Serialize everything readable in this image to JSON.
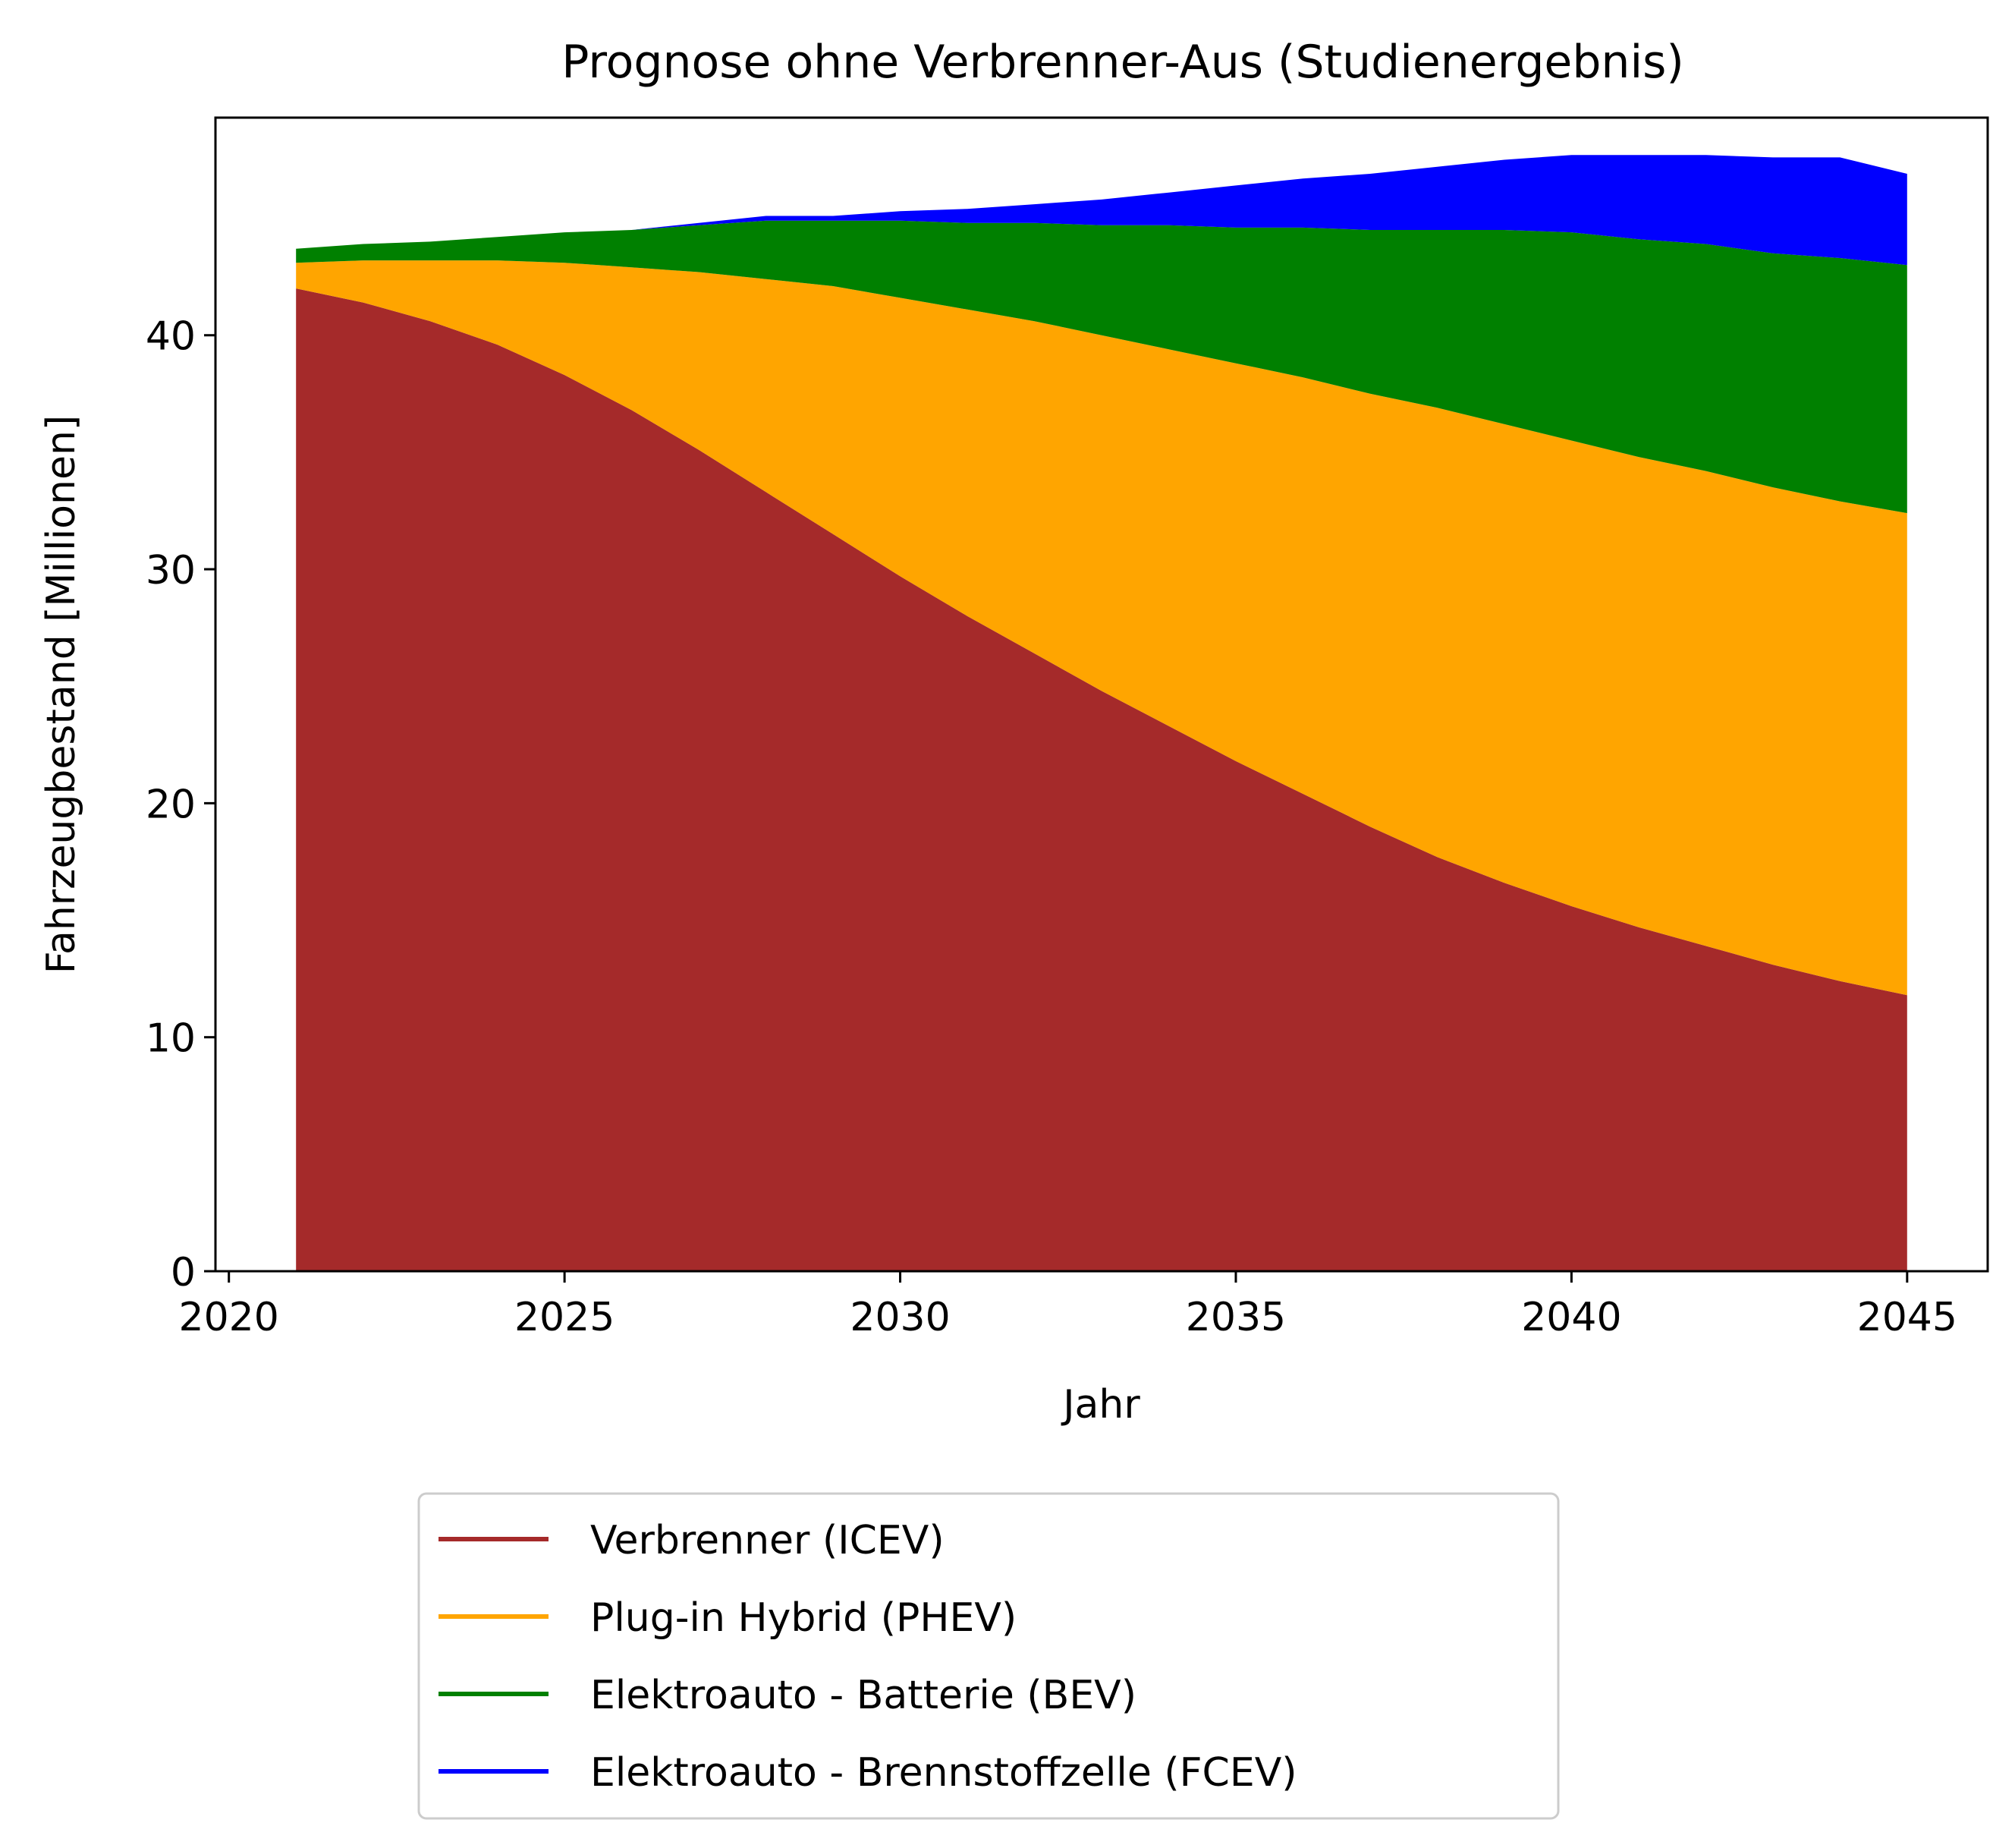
{
  "chart_data": {
    "type": "area",
    "stacked": true,
    "title": "Prognose ohne Verbrenner-Aus (Studienergebnis)",
    "xlabel": "Jahr",
    "ylabel": "Fahrzeugbestand [Millionen]",
    "xlim": [
      2019.8,
      2046.2
    ],
    "ylim": [
      0,
      49.3
    ],
    "xticks": [
      2020,
      2025,
      2030,
      2035,
      2040,
      2045
    ],
    "yticks": [
      0,
      10,
      20,
      30,
      40
    ],
    "grid": false,
    "legend_position": "below",
    "x": [
      2021,
      2022,
      2023,
      2024,
      2025,
      2026,
      2027,
      2028,
      2029,
      2030,
      2031,
      2032,
      2033,
      2034,
      2035,
      2036,
      2037,
      2038,
      2039,
      2040,
      2041,
      2042,
      2043,
      2044,
      2045
    ],
    "series": [
      {
        "name": "Verbrenner (ICEV)",
        "color": "#a52a2a",
        "values": [
          42.0,
          41.4,
          40.6,
          39.6,
          38.3,
          36.8,
          35.1,
          33.3,
          31.5,
          29.7,
          28.0,
          26.4,
          24.8,
          23.3,
          21.8,
          20.4,
          19.0,
          17.7,
          16.6,
          15.6,
          14.7,
          13.9,
          13.1,
          12.4,
          11.8
        ]
      },
      {
        "name": "Plug-in Hybrid (PHEV)",
        "color": "#ffa500",
        "values": [
          1.1,
          1.8,
          2.6,
          3.6,
          4.8,
          6.1,
          7.6,
          9.1,
          10.6,
          11.9,
          13.1,
          14.2,
          15.2,
          16.1,
          17.0,
          17.8,
          18.5,
          19.2,
          19.6,
          19.9,
          20.1,
          20.3,
          20.4,
          20.5,
          20.6
        ]
      },
      {
        "name": "Elektroauto - Batterie (BEV)",
        "color": "#008000",
        "values": [
          0.6,
          0.7,
          0.8,
          1.0,
          1.3,
          1.6,
          2.0,
          2.5,
          2.8,
          3.3,
          3.7,
          4.2,
          4.7,
          5.3,
          5.8,
          6.4,
          7.0,
          7.6,
          8.3,
          8.9,
          9.3,
          9.7,
          10.0,
          10.4,
          10.6
        ]
      },
      {
        "name": "Elektroauto - Brennstoffzelle (FCEV)",
        "color": "#0000ff",
        "values": [
          0.0,
          0.0,
          0.0,
          0.0,
          0.0,
          0.0,
          0.1,
          0.2,
          0.2,
          0.4,
          0.6,
          0.8,
          1.1,
          1.4,
          1.8,
          2.1,
          2.4,
          2.7,
          3.0,
          3.3,
          3.6,
          3.8,
          4.1,
          4.3,
          3.9
        ]
      }
    ]
  }
}
